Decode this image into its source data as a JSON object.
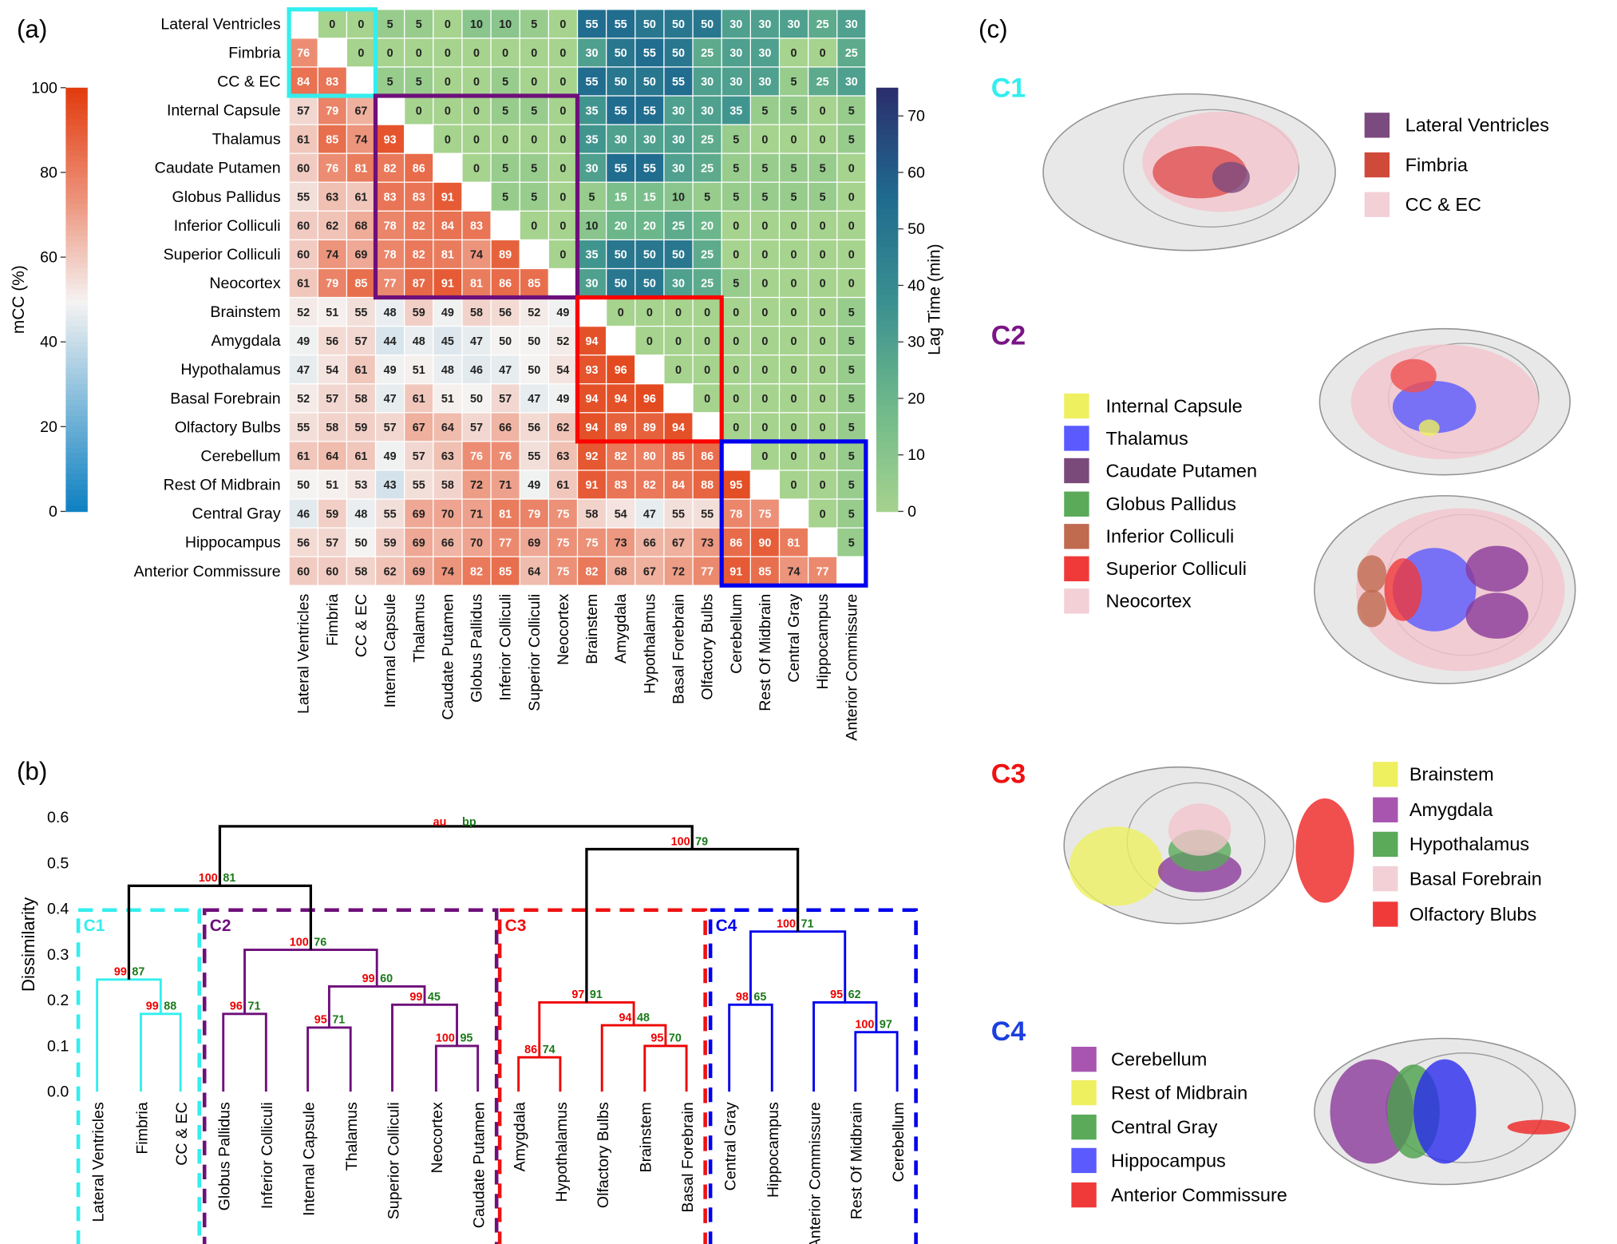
{
  "panel_labels": {
    "a": "(a)",
    "b": "(b)",
    "c": "(c)"
  },
  "chart_data": [
    {
      "type": "heatmap",
      "title": "(a)",
      "description_lower": "mCC (%)",
      "description_upper": "Lag Time (min)",
      "regions": [
        "Lateral Ventricles",
        "Fimbria",
        "CC & EC",
        "Internal Capsule",
        "Thalamus",
        "Caudate Putamen",
        "Globus Pallidus",
        "Inferior Colliculi",
        "Superior Colliculi",
        "Neocortex",
        "Brainstem",
        "Amygdala",
        "Hypothalamus",
        "Basal Forebrain",
        "Olfactory Bulbs",
        "Cerebellum",
        "Rest Of Midbrain",
        "Central Gray",
        "Hippocampus",
        "Anterior Commissure"
      ],
      "values": [
        [
          null,
          0,
          0,
          5,
          5,
          0,
          10,
          10,
          5,
          0,
          55,
          55,
          50,
          50,
          50,
          30,
          30,
          30,
          25,
          30
        ],
        [
          76,
          null,
          0,
          0,
          0,
          0,
          0,
          0,
          0,
          0,
          30,
          50,
          55,
          50,
          25,
          30,
          30,
          0,
          0,
          25
        ],
        [
          84,
          83,
          null,
          5,
          5,
          0,
          0,
          5,
          0,
          0,
          55,
          50,
          50,
          55,
          30,
          30,
          30,
          5,
          25,
          30
        ],
        [
          57,
          79,
          67,
          null,
          0,
          0,
          0,
          5,
          5,
          0,
          35,
          55,
          55,
          30,
          30,
          35,
          5,
          5,
          0,
          5
        ],
        [
          61,
          85,
          74,
          93,
          null,
          0,
          0,
          0,
          0,
          0,
          35,
          30,
          30,
          30,
          25,
          5,
          0,
          0,
          0,
          5
        ],
        [
          60,
          76,
          81,
          82,
          86,
          null,
          0,
          5,
          5,
          0,
          30,
          55,
          55,
          30,
          25,
          5,
          5,
          5,
          5,
          0
        ],
        [
          55,
          63,
          61,
          83,
          83,
          91,
          null,
          5,
          5,
          0,
          5,
          15,
          15,
          10,
          5,
          5,
          5,
          5,
          5,
          0
        ],
        [
          60,
          62,
          68,
          78,
          82,
          84,
          83,
          null,
          0,
          0,
          10,
          20,
          20,
          25,
          20,
          0,
          0,
          0,
          0,
          0
        ],
        [
          60,
          74,
          69,
          78,
          82,
          81,
          74,
          89,
          null,
          0,
          35,
          50,
          50,
          50,
          25,
          0,
          0,
          0,
          0,
          0
        ],
        [
          61,
          79,
          85,
          77,
          87,
          91,
          81,
          86,
          85,
          null,
          30,
          50,
          50,
          30,
          25,
          5,
          0,
          0,
          0,
          0
        ],
        [
          52,
          51,
          55,
          48,
          59,
          49,
          58,
          56,
          52,
          49,
          null,
          0,
          0,
          0,
          0,
          0,
          0,
          0,
          0,
          5
        ],
        [
          49,
          56,
          57,
          44,
          48,
          45,
          47,
          50,
          50,
          52,
          94,
          null,
          0,
          0,
          0,
          0,
          0,
          0,
          0,
          5
        ],
        [
          47,
          54,
          61,
          49,
          51,
          48,
          46,
          47,
          50,
          54,
          93,
          96,
          null,
          0,
          0,
          0,
          0,
          0,
          0,
          5
        ],
        [
          52,
          57,
          58,
          47,
          61,
          51,
          50,
          57,
          47,
          49,
          94,
          94,
          96,
          null,
          0,
          0,
          0,
          0,
          0,
          5
        ],
        [
          55,
          58,
          59,
          57,
          67,
          64,
          57,
          66,
          56,
          62,
          94,
          89,
          89,
          94,
          null,
          0,
          0,
          0,
          0,
          5
        ],
        [
          61,
          64,
          61,
          49,
          57,
          63,
          76,
          76,
          55,
          63,
          92,
          82,
          80,
          85,
          86,
          null,
          0,
          0,
          0,
          5
        ],
        [
          50,
          51,
          53,
          43,
          55,
          58,
          72,
          71,
          49,
          61,
          91,
          83,
          82,
          84,
          88,
          95,
          null,
          0,
          0,
          5
        ],
        [
          46,
          59,
          48,
          55,
          69,
          70,
          71,
          81,
          79,
          75,
          58,
          54,
          47,
          55,
          55,
          78,
          75,
          null,
          0,
          5
        ],
        [
          56,
          57,
          50,
          59,
          69,
          66,
          70,
          77,
          69,
          75,
          75,
          73,
          66,
          67,
          73,
          86,
          90,
          81,
          null,
          5
        ],
        [
          60,
          60,
          58,
          62,
          69,
          74,
          82,
          85,
          64,
          75,
          82,
          68,
          67,
          72,
          77,
          91,
          85,
          74,
          77,
          null
        ]
      ],
      "clusters": [
        {
          "name": "C1",
          "start": 0,
          "end": 2,
          "color": "#33eeee"
        },
        {
          "name": "C2",
          "start": 3,
          "end": 9,
          "color": "#6e0f7a"
        },
        {
          "name": "C3",
          "start": 10,
          "end": 14,
          "color": "#ff0000"
        },
        {
          "name": "C4",
          "start": 15,
          "end": 19,
          "color": "#0000ee"
        }
      ],
      "colorbar_mcc": {
        "label": "mCC (%)",
        "range": [
          0,
          100
        ],
        "ticks": [
          "0",
          "20",
          "40",
          "60",
          "80",
          "100"
        ],
        "colors": [
          "#0a7fc0",
          "#7db8da",
          "#f5f3f2",
          "#ec9077",
          "#e23d10"
        ]
      },
      "colorbar_lag": {
        "label": "Lag Time (min)",
        "range": [
          0,
          75
        ],
        "ticks": [
          "0",
          "10",
          "20",
          "30",
          "40",
          "50",
          "60",
          "70"
        ],
        "colors": [
          "#a6d38e",
          "#6fb98a",
          "#3a9090",
          "#1f6a8f",
          "#2b2f6c"
        ]
      }
    },
    {
      "type": "dendrogram",
      "title": "(b)",
      "ylabel": "Dissimilarity",
      "ylim": [
        0,
        0.6
      ],
      "yticks": [
        "0.0",
        "0.1",
        "0.2",
        "0.3",
        "0.4",
        "0.5",
        "0.6"
      ],
      "legend_au": "au",
      "legend_bp": "bp",
      "leaves": [
        "Lateral Ventricles",
        "Fimbria",
        "CC & EC",
        "Globus Pallidus",
        "Inferior Colliculi",
        "Internal Capsule",
        "Thalamus",
        "Superior Colliculi",
        "Neocortex",
        "Caudate Putamen",
        "Amygdala",
        "Hypothalamus",
        "Olfactory Bulbs",
        "Brainstem",
        "Basal Forebrain",
        "Central Gray",
        "Hippocampus",
        "Anterior Commissure",
        "Rest Of Midbrain",
        "Cerebellum"
      ],
      "merges": [
        {
          "id": "m1",
          "a": 1,
          "b": 2,
          "h": 0.17,
          "au": "99",
          "bp": "88",
          "color": "#33eeee"
        },
        {
          "id": "m2",
          "a": 0,
          "b": "m1",
          "h": 0.245,
          "au": "99",
          "bp": "87",
          "color": "#33eeee"
        },
        {
          "id": "m3",
          "a": 3,
          "b": 4,
          "h": 0.17,
          "au": "96",
          "bp": "71",
          "color": "#6e0f7a"
        },
        {
          "id": "m4",
          "a": 5,
          "b": 6,
          "h": 0.14,
          "au": "95",
          "bp": "71",
          "color": "#6e0f7a"
        },
        {
          "id": "m5",
          "a": 8,
          "b": 9,
          "h": 0.1,
          "au": "100",
          "bp": "95",
          "color": "#6e0f7a"
        },
        {
          "id": "m6",
          "a": 7,
          "b": "m5",
          "h": 0.19,
          "au": "99",
          "bp": "45",
          "color": "#6e0f7a"
        },
        {
          "id": "m7",
          "a": "m4",
          "b": "m6",
          "h": 0.23,
          "au": "99",
          "bp": "60",
          "color": "#6e0f7a"
        },
        {
          "id": "m8",
          "a": "m3",
          "b": "m7",
          "h": 0.31,
          "au": "100",
          "bp": "76",
          "color": "#6e0f7a"
        },
        {
          "id": "m9",
          "a": "m2",
          "b": "m8",
          "h": 0.45,
          "au": "100",
          "bp": "81",
          "color": "#000000"
        },
        {
          "id": "m10",
          "a": 10,
          "b": 11,
          "h": 0.075,
          "au": "86",
          "bp": "74",
          "color": "#ee0000"
        },
        {
          "id": "m11",
          "a": 13,
          "b": 14,
          "h": 0.1,
          "au": "95",
          "bp": "70",
          "color": "#ee0000"
        },
        {
          "id": "m12",
          "a": 12,
          "b": "m11",
          "h": 0.145,
          "au": "94",
          "bp": "48",
          "color": "#ee0000"
        },
        {
          "id": "m13",
          "a": "m10",
          "b": "m12",
          "h": 0.195,
          "au": "97",
          "bp": "91",
          "color": "#ee0000"
        },
        {
          "id": "m14",
          "a": 15,
          "b": 16,
          "h": 0.19,
          "au": "98",
          "bp": "65",
          "color": "#0000ee"
        },
        {
          "id": "m15",
          "a": 18,
          "b": 19,
          "h": 0.13,
          "au": "100",
          "bp": "97",
          "color": "#0000ee"
        },
        {
          "id": "m16",
          "a": 17,
          "b": "m15",
          "h": 0.195,
          "au": "95",
          "bp": "62",
          "color": "#0000ee"
        },
        {
          "id": "m17",
          "a": "m14",
          "b": "m16",
          "h": 0.35,
          "au": "100",
          "bp": "71",
          "color": "#0000ee"
        },
        {
          "id": "m18",
          "a": "m13",
          "b": "m17",
          "h": 0.53,
          "au": "100",
          "bp": "79",
          "color": "#000000"
        },
        {
          "id": "m19",
          "a": "m9",
          "b": "m18",
          "h": 0.58,
          "au": "",
          "bp": "",
          "color": "#000000"
        }
      ],
      "cluster_boxes": [
        {
          "name": "C1",
          "first": 0,
          "last": 2,
          "color": "#33eeee"
        },
        {
          "name": "C2",
          "first": 3,
          "last": 9,
          "color": "#6e0f7a"
        },
        {
          "name": "C3",
          "first": 10,
          "last": 14,
          "color": "#ee1111"
        },
        {
          "name": "C4",
          "first": 15,
          "last": 19,
          "color": "#0000ee"
        }
      ]
    }
  ],
  "panel_c": {
    "groups": [
      {
        "name": "C1",
        "color": "#33eeee",
        "items": [
          {
            "label": "Lateral Ventricles",
            "color": "#7b4a7e"
          },
          {
            "label": "Fimbria",
            "color": "#d04a3a"
          },
          {
            "label": "CC & EC",
            "color": "#f2d0d6"
          }
        ]
      },
      {
        "name": "C2",
        "color": "#7a1585",
        "items": [
          {
            "label": "Internal Capsule",
            "color": "#eef060"
          },
          {
            "label": "Thalamus",
            "color": "#5a5aff"
          },
          {
            "label": "Caudate Putamen",
            "color": "#7a4a7a"
          },
          {
            "label": "Globus Pallidus",
            "color": "#5aaa5a"
          },
          {
            "label": "Inferior Colliculi",
            "color": "#c06a50"
          },
          {
            "label": "Superior Colliculi",
            "color": "#f03a3a"
          },
          {
            "label": "Neocortex",
            "color": "#f2d0d6"
          }
        ]
      },
      {
        "name": "C3",
        "color": "#ee1111",
        "items": [
          {
            "label": "Brainstem",
            "color": "#eef060"
          },
          {
            "label": "Amygdala",
            "color": "#a855b0"
          },
          {
            "label": "Hypothalamus",
            "color": "#5aaa5a"
          },
          {
            "label": "Basal Forebrain",
            "color": "#f2d0d6"
          },
          {
            "label": "Olfactory Blubs",
            "color": "#f03a3a"
          }
        ]
      },
      {
        "name": "C4",
        "color": "#1a3ee0",
        "items": [
          {
            "label": "Cerebellum",
            "color": "#a855b0"
          },
          {
            "label": "Rest of Midbrain",
            "color": "#eef060"
          },
          {
            "label": "Central Gray",
            "color": "#5aaa5a"
          },
          {
            "label": "Hippocampus",
            "color": "#5a5aff"
          },
          {
            "label": "Anterior Commissure",
            "color": "#f03a3a"
          }
        ]
      }
    ]
  }
}
